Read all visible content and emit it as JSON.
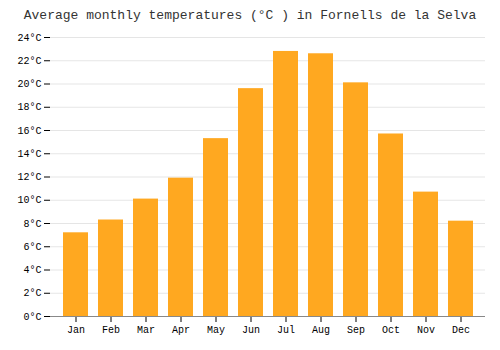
{
  "chart_data": {
    "type": "bar",
    "title": "Average monthly temperatures (°C ) in Fornells de la Selva",
    "categories": [
      "Jan",
      "Feb",
      "Mar",
      "Apr",
      "May",
      "Jun",
      "Jul",
      "Aug",
      "Sep",
      "Oct",
      "Nov",
      "Dec"
    ],
    "values": [
      7.2,
      8.3,
      10.1,
      11.9,
      15.3,
      19.6,
      22.8,
      22.6,
      20.1,
      15.7,
      10.7,
      8.2
    ],
    "color": "#FFA820",
    "ylim": [
      0,
      24
    ],
    "yticks": [
      {
        "value": 0,
        "label": "0°C"
      },
      {
        "value": 2,
        "label": "2°C"
      },
      {
        "value": 4,
        "label": "4°C"
      },
      {
        "value": 6,
        "label": "6°C"
      },
      {
        "value": 8,
        "label": "8°C"
      },
      {
        "value": 10,
        "label": "10°C"
      },
      {
        "value": 12,
        "label": "12°C"
      },
      {
        "value": 14,
        "label": "14°C"
      },
      {
        "value": 16,
        "label": "16°C"
      },
      {
        "value": 18,
        "label": "18°C"
      },
      {
        "value": 20,
        "label": "20°C"
      },
      {
        "value": 22,
        "label": "22°C"
      },
      {
        "value": 24,
        "label": "24°C"
      }
    ],
    "grid": true
  }
}
